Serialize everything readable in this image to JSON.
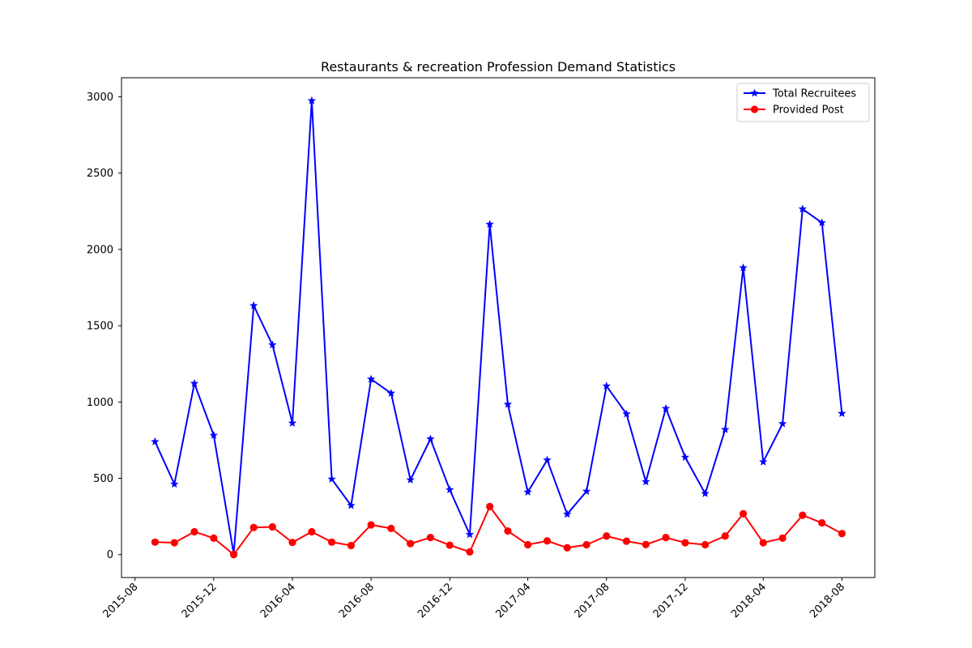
{
  "chart_data": {
    "type": "line",
    "title": "Restaurants & recreation Profession Demand Statistics",
    "xlabel": "",
    "ylabel": "",
    "x": [
      "2015-09",
      "2015-10",
      "2015-11",
      "2015-12",
      "2016-01",
      "2016-02",
      "2016-03",
      "2016-04",
      "2016-05",
      "2016-06",
      "2016-07",
      "2016-08",
      "2016-09",
      "2016-10",
      "2016-11",
      "2016-12",
      "2017-01",
      "2017-02",
      "2017-03",
      "2017-04",
      "2017-05",
      "2017-06",
      "2017-07",
      "2017-08",
      "2017-09",
      "2017-10",
      "2017-11",
      "2017-12",
      "2018-01",
      "2018-02",
      "2018-03",
      "2018-04",
      "2018-05",
      "2018-06",
      "2018-07",
      "2018-08"
    ],
    "series": [
      {
        "name": "Total Recruitees",
        "color": "#0000ff",
        "marker": "star",
        "values": [
          740,
          462,
          1122,
          782,
          5,
          1632,
          1375,
          862,
          2975,
          495,
          322,
          1150,
          1058,
          490,
          758,
          425,
          132,
          2165,
          985,
          410,
          620,
          265,
          415,
          1105,
          922,
          478,
          958,
          638,
          400,
          820,
          1880,
          608,
          858,
          2265,
          2175,
          925
        ]
      },
      {
        "name": "Provided Post",
        "color": "#ff0000",
        "marker": "circle",
        "values": [
          82,
          78,
          150,
          108,
          0,
          178,
          182,
          80,
          150,
          82,
          60,
          195,
          172,
          72,
          112,
          62,
          18,
          315,
          155,
          65,
          90,
          45,
          65,
          122,
          88,
          66,
          112,
          78,
          65,
          122,
          268,
          78,
          108,
          258,
          208,
          138
        ]
      }
    ],
    "xticks": [
      "2015-08",
      "2015-12",
      "2016-04",
      "2016-08",
      "2016-12",
      "2017-04",
      "2017-08",
      "2017-12",
      "2018-04",
      "2018-08"
    ],
    "xlim": [
      "2015-07-11",
      "2018-09-21"
    ],
    "yticks": [
      0,
      500,
      1000,
      1500,
      2000,
      2500,
      3000
    ],
    "ylim": [
      -150,
      3125
    ],
    "grid": false,
    "legend_position": "top-right"
  }
}
